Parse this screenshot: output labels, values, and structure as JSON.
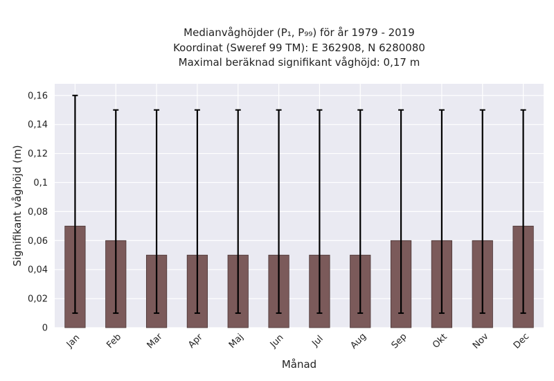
{
  "chart_data": {
    "type": "bar",
    "title_lines": [
      "Medianvåghöjder (P₁, P₉₉) för år 1979 - 2019",
      "Koordinat (Sweref 99 TM): E 362908, N 6280080",
      "Maximal beräknad signifikant våghöjd: 0,17 m"
    ],
    "xlabel": "Månad",
    "ylabel": "Signifikant våghöjd (m)",
    "categories": [
      "Jan",
      "Feb",
      "Mar",
      "Apr",
      "Maj",
      "Jun",
      "Jul",
      "Aug",
      "Sep",
      "Okt",
      "Nov",
      "Dec"
    ],
    "values": [
      0.07,
      0.06,
      0.05,
      0.05,
      0.05,
      0.05,
      0.05,
      0.05,
      0.06,
      0.06,
      0.06,
      0.07
    ],
    "error_low": [
      0.01,
      0.01,
      0.01,
      0.01,
      0.01,
      0.01,
      0.01,
      0.01,
      0.01,
      0.01,
      0.01,
      0.01
    ],
    "error_high": [
      0.16,
      0.15,
      0.15,
      0.15,
      0.15,
      0.15,
      0.15,
      0.15,
      0.15,
      0.15,
      0.15,
      0.15
    ],
    "yticks": [
      0,
      0.02,
      0.04,
      0.06,
      0.08,
      0.1,
      0.12,
      0.14,
      0.16
    ],
    "ytick_labels": [
      "0",
      "0,02",
      "0,04",
      "0,06",
      "0,08",
      "0,1",
      "0,12",
      "0,14",
      "0,16"
    ],
    "ylim": [
      0,
      0.168
    ],
    "grid": true,
    "bar_color": "#7b5a5a",
    "plot_background": "#eaeaf2",
    "grid_color": "#ffffff",
    "errorbar_color": "#000000"
  }
}
